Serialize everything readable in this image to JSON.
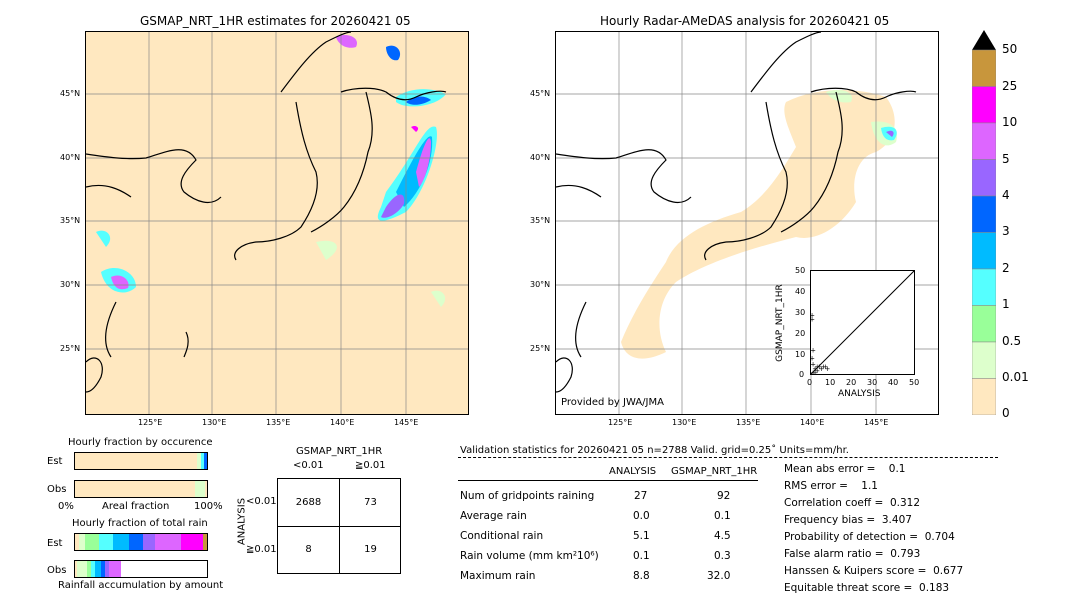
{
  "left_map": {
    "title": "GSMAP_NRT_1HR estimates for 20260421 05",
    "lat_labels": [
      "45°N",
      "40°N",
      "35°N",
      "30°N",
      "25°N"
    ],
    "lon_labels": [
      "125°E",
      "130°E",
      "135°E",
      "140°E",
      "145°E"
    ]
  },
  "right_map": {
    "title": "Hourly Radar-AMeDAS analysis for 20260421 05",
    "lat_labels": [
      "45°N",
      "40°N",
      "35°N",
      "30°N",
      "25°N"
    ],
    "lon_labels": [
      "125°E",
      "130°E",
      "135°E",
      "140°E",
      "145°E"
    ],
    "credit": "Provided by JWA/JMA"
  },
  "colorbar": {
    "labels": [
      "50",
      "25",
      "10",
      "5",
      "4",
      "3",
      "2",
      "1",
      "0.5",
      "0.01",
      "0"
    ],
    "colors": [
      "#c8963c",
      "#ff00ff",
      "#dd66ff",
      "#9966ff",
      "#0066ff",
      "#00bbff",
      "#55ffff",
      "#99ff99",
      "#ddffcc",
      "#ffe8c0"
    ]
  },
  "scatter": {
    "ylabel": "GSMAP_NRT_1HR",
    "xlabel": "ANALYSIS",
    "ticks": [
      "0",
      "10",
      "20",
      "30",
      "40",
      "50"
    ]
  },
  "fraction_occurrence": {
    "title": "Hourly fraction by occurence",
    "row_labels": [
      "Est",
      "Obs"
    ],
    "axis_left": "0%",
    "axis_mid": "Areal fraction",
    "axis_right": "100%"
  },
  "fraction_total": {
    "title": "Hourly fraction of total rain",
    "row_labels": [
      "Est",
      "Obs"
    ],
    "footer": "Rainfall accumulation by amount"
  },
  "contingency": {
    "col_title": "GSMAP_NRT_1HR",
    "col_labels": [
      "<0.01",
      "≧0.01"
    ],
    "row_title": "ANALYSIS",
    "row_labels": [
      "<0.01",
      "≧0.01"
    ],
    "cells": [
      "2688",
      "73",
      "8",
      "19"
    ]
  },
  "validation": {
    "header": "Validation statistics for 20260421 05  n=2788 Valid. grid=0.25˚ Units=mm/hr.",
    "col_headers": [
      "ANALYSIS",
      "GSMAP_NRT_1HR"
    ],
    "rows": [
      {
        "label": "Num of gridpoints raining",
        "a": "27",
        "g": "92"
      },
      {
        "label": "Average rain",
        "a": "0.0",
        "g": "0.1"
      },
      {
        "label": "Conditional rain",
        "a": "5.1",
        "g": "4.5"
      },
      {
        "label": "Rain volume (mm km²10⁶)",
        "a": "0.1",
        "g": "0.3"
      },
      {
        "label": "Maximum rain",
        "a": "8.8",
        "g": "32.0"
      }
    ],
    "scores": [
      "Mean abs error =    0.1",
      "RMS error =    1.1",
      "Correlation coeff =  0.312",
      "Frequency bias =  3.407",
      "Probability of detection =  0.704",
      "False alarm ratio =  0.793",
      "Hanssen & Kuipers score =  0.677",
      "Equitable threat score =  0.183"
    ]
  },
  "chart_data": {
    "type": "scatter",
    "xlabel": "ANALYSIS",
    "ylabel": "GSMAP_NRT_1HR",
    "xlim": [
      0,
      50
    ],
    "ylim": [
      0,
      50
    ],
    "series": [
      {
        "values": [
          [
            0.5,
            29
          ],
          [
            0.5,
            27
          ],
          [
            1,
            5
          ],
          [
            2,
            3
          ],
          [
            3,
            2
          ],
          [
            4,
            4
          ],
          [
            5,
            3
          ],
          [
            6,
            4
          ],
          [
            7,
            4
          ],
          [
            8,
            3
          ],
          [
            1,
            1
          ],
          [
            2,
            1
          ],
          [
            0.5,
            8
          ],
          [
            1,
            12
          ],
          [
            3,
            4
          ]
        ]
      }
    ]
  }
}
